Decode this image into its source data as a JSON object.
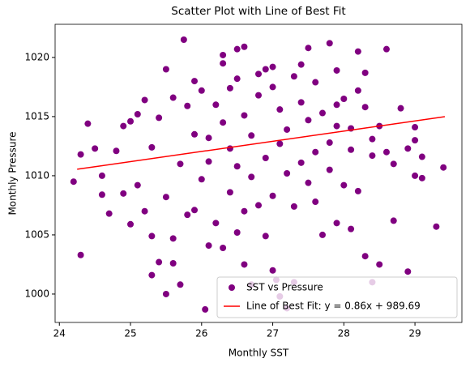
{
  "chart_data": {
    "type": "scatter",
    "title": "Scatter Plot with Line of Best Fit",
    "xlabel": "Monthly SST",
    "ylabel": "Monthly Pressure",
    "xlim": [
      23.94,
      29.66
    ],
    "ylim": [
      997.6,
      1022.8
    ],
    "xticks": [
      24,
      25,
      26,
      27,
      28,
      29
    ],
    "yticks": [
      1000,
      1005,
      1010,
      1015,
      1020
    ],
    "legend": "lower right",
    "series": [
      {
        "name": "SST vs Pressure",
        "style": "scatter",
        "color": "#800080",
        "x": [
          24.3,
          24.2,
          24.4,
          24.3,
          24.5,
          24.6,
          24.7,
          24.6,
          24.9,
          24.8,
          24.9,
          25.0,
          25.0,
          25.1,
          25.2,
          25.3,
          25.3,
          25.4,
          25.5,
          25.5,
          25.6,
          25.7,
          25.75,
          26.05,
          25.6,
          25.8,
          26.1,
          26.3,
          26.5,
          26.6,
          26.3,
          26.4,
          26.7,
          26.8,
          26.6,
          26.9,
          27.0,
          27.1,
          27.2,
          27.05,
          27.3,
          27.5,
          27.8,
          27.9,
          28.1,
          28.3,
          28.4,
          28.5,
          28.6,
          28.7,
          28.9,
          29.0,
          29.1,
          29.3,
          29.4,
          29.0,
          29.1,
          29.0,
          28.2,
          28.6,
          28.8,
          28.7,
          28.5,
          28.9,
          26.2,
          26.3,
          26.4,
          26.5,
          26.6,
          26.7,
          26.8,
          26.9,
          27.0,
          27.1,
          27.2,
          27.3,
          27.4,
          27.5,
          27.6,
          27.7,
          27.8,
          27.9,
          28.0,
          28.1,
          28.2,
          28.3,
          28.4,
          26.9,
          27.2,
          27.5,
          27.0,
          26.7,
          26.5,
          27.8,
          28.0,
          27.3,
          26.4,
          26.1,
          25.9,
          25.8,
          25.6,
          25.4,
          25.3,
          25.2,
          25.1,
          25.9,
          26.0,
          25.7,
          25.5,
          25.9,
          26.2,
          26.5,
          26.6,
          27.6,
          27.7,
          28.2,
          28.4,
          28.1,
          27.4,
          27.0,
          26.8,
          27.9,
          28.3,
          27.6,
          27.1,
          26.3,
          26.0,
          26.1,
          27.4,
          27.9
        ],
        "values": [
          1003.3,
          1009.5,
          1014.4,
          1011.8,
          1012.3,
          1010,
          1006.8,
          1008.4,
          1008.5,
          1012.1,
          1014.2,
          1014.6,
          1005.9,
          1009.2,
          1007,
          1004.9,
          1001.6,
          1002.7,
          1000,
          1019,
          1002.6,
          1000.8,
          1021.5,
          998.7,
          1004.7,
          1006.7,
          1004.1,
          1003.9,
          1020.7,
          1020.9,
          1020.2,
          1017.4,
          1000.8,
          1007.5,
          1002.5,
          1004.9,
          1002,
          999.8,
          998.8,
          1001.2,
          1001,
          1020.8,
          1021.2,
          1006,
          1005.5,
          1003.2,
          1001,
          1002.5,
          1020.7,
          1006.2,
          1001.9,
          1010,
          1009.8,
          1005.7,
          1010.7,
          1014.1,
          1011.6,
          1013,
          1020.5,
          1012,
          1015.7,
          1011,
          1014.2,
          1012.3,
          1016,
          1014.5,
          1012.3,
          1018.2,
          1015.1,
          1013.4,
          1016.8,
          1019,
          1017.5,
          1015.6,
          1013.9,
          1018.4,
          1016.2,
          1014.7,
          1017.9,
          1015.3,
          1012.8,
          1018.9,
          1016.5,
          1014,
          1017.2,
          1015.8,
          1013.1,
          1011.5,
          1010.2,
          1009.4,
          1008.3,
          1009.9,
          1010.8,
          1010.5,
          1009.2,
          1007.4,
          1008.6,
          1011.2,
          1013.5,
          1015.9,
          1016.6,
          1014.9,
          1012.4,
          1016.4,
          1015.2,
          1018,
          1009.7,
          1011,
          1008.2,
          1007.1,
          1006,
          1005.2,
          1007,
          1007.8,
          1005,
          1008.7,
          1011.7,
          1012.2,
          1019.4,
          1019.2,
          1018.6,
          1016,
          1018.7,
          1012,
          1012.7,
          1019.5,
          1017.2,
          1013.2,
          1011.1,
          1014.2
        ]
      },
      {
        "name": "Line of Best Fit: y = 0.86x + 989.69",
        "style": "line",
        "color": "#ff0000",
        "x": [
          24.25,
          29.42
        ],
        "values": [
          1010.55,
          1014.99
        ]
      }
    ]
  }
}
